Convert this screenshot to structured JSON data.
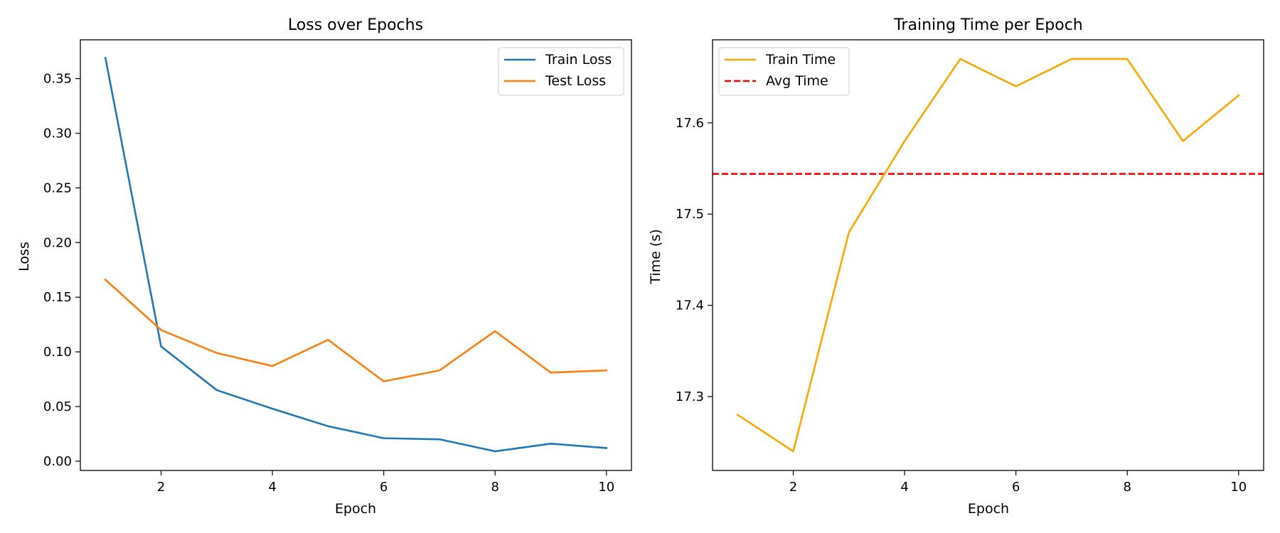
{
  "chart_data": [
    {
      "type": "line",
      "title": "Loss over Epochs",
      "xlabel": "Epoch",
      "ylabel": "Loss",
      "x": [
        1,
        2,
        3,
        4,
        5,
        6,
        7,
        8,
        9,
        10
      ],
      "xlim": [
        0.55,
        10.45
      ],
      "ylim": [
        -0.0085,
        0.3855
      ],
      "xticks": [
        2,
        4,
        6,
        8,
        10
      ],
      "yticks": [
        0.0,
        0.05,
        0.1,
        0.15,
        0.2,
        0.25,
        0.3,
        0.35
      ],
      "ytick_labels": [
        "0.00",
        "0.05",
        "0.10",
        "0.15",
        "0.20",
        "0.25",
        "0.30",
        "0.35"
      ],
      "legend": "upper right",
      "grid": false,
      "series": [
        {
          "name": "Train Loss",
          "color": "#1f77b4",
          "dash": "solid",
          "values": [
            0.369,
            0.105,
            0.065,
            0.048,
            0.032,
            0.021,
            0.02,
            0.009,
            0.016,
            0.012
          ]
        },
        {
          "name": "Test Loss",
          "color": "#ff7f0e",
          "dash": "solid",
          "values": [
            0.166,
            0.12,
            0.099,
            0.087,
            0.111,
            0.073,
            0.083,
            0.119,
            0.081,
            0.083
          ]
        }
      ]
    },
    {
      "type": "line",
      "title": "Training Time per Epoch",
      "xlabel": "Epoch",
      "ylabel": "Time (s)",
      "x": [
        1,
        2,
        3,
        4,
        5,
        6,
        7,
        8,
        9,
        10
      ],
      "xlim": [
        0.55,
        10.45
      ],
      "ylim": [
        17.219,
        17.691
      ],
      "xticks": [
        2,
        4,
        6,
        8,
        10
      ],
      "yticks": [
        17.3,
        17.4,
        17.5,
        17.6
      ],
      "ytick_labels": [
        "17.3",
        "17.4",
        "17.5",
        "17.6"
      ],
      "legend": "upper left",
      "grid": false,
      "series": [
        {
          "name": "Train Time",
          "color": "#ffa500",
          "dash": "solid",
          "values": [
            17.28,
            17.24,
            17.48,
            17.58,
            17.67,
            17.64,
            17.67,
            17.67,
            17.58,
            17.63
          ]
        }
      ],
      "hlines": [
        {
          "name": "Avg Time",
          "color": "#ff0000",
          "dash": "dashed",
          "value": 17.544
        }
      ]
    }
  ]
}
